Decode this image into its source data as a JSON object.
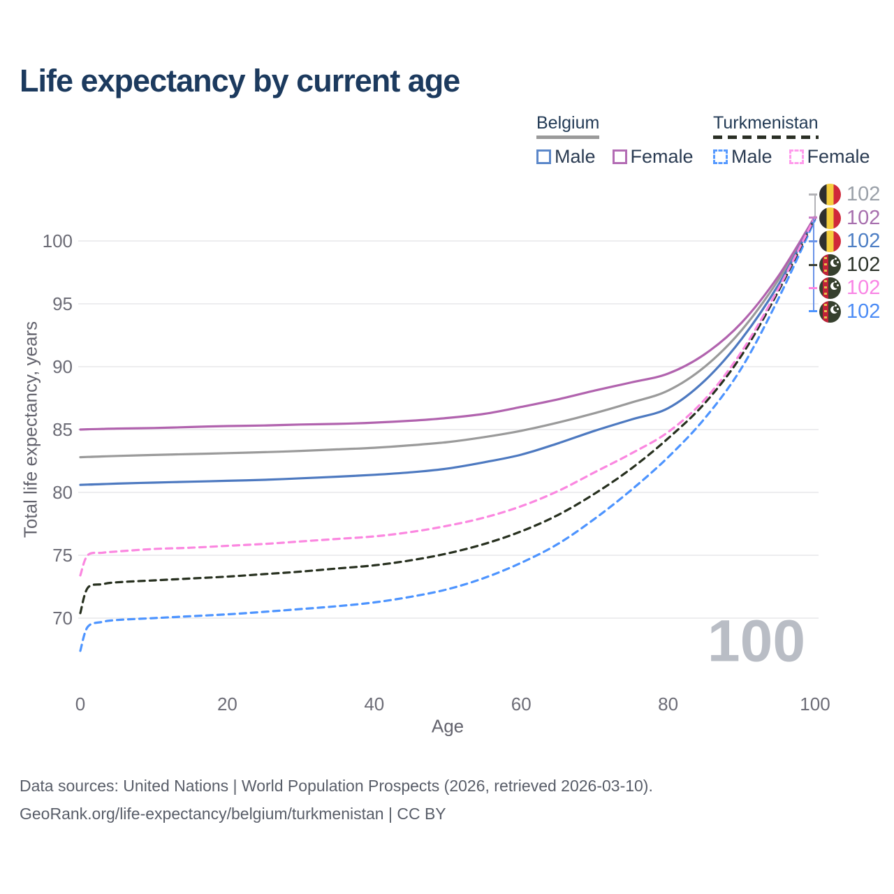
{
  "title": "Life expectancy by current age",
  "legend": {
    "belgium": {
      "label": "Belgium",
      "male_label": "Male",
      "female_label": "Female"
    },
    "turkmenistan": {
      "label": "Turkmenistan",
      "male_label": "Male",
      "female_label": "Female"
    }
  },
  "watermark": "100",
  "y_axis": {
    "title": "Total life expectancy, years"
  },
  "x_axis": {
    "title": "Age"
  },
  "end_labels": [
    {
      "country": "Belgium",
      "series": "Total",
      "value": "102",
      "color": "#9aa0a8"
    },
    {
      "country": "Belgium",
      "series": "Female",
      "value": "102",
      "color": "#a76fae"
    },
    {
      "country": "Belgium",
      "series": "Male",
      "value": "102",
      "color": "#4d7ec4"
    },
    {
      "country": "Turkmenistan",
      "series": "Total",
      "value": "102",
      "color": "#2b3229"
    },
    {
      "country": "Turkmenistan",
      "series": "Female",
      "value": "102",
      "color": "#f985e5"
    },
    {
      "country": "Turkmenistan",
      "series": "Male",
      "value": "102",
      "color": "#4b8bf5"
    }
  ],
  "footer": {
    "line1": "Data sources: United Nations | World Population Prospects (2026, retrieved 2026-03-10).",
    "line2": "GeoRank.org/life-expectancy/belgium/turkmenistan | CC BY"
  },
  "chart_data": {
    "type": "line",
    "title": "Life expectancy by current age",
    "xlabel": "Age",
    "ylabel": "Total life expectancy, years",
    "xticks": [
      0,
      20,
      40,
      60,
      80,
      100
    ],
    "yticks": [
      70,
      75,
      80,
      85,
      90,
      95,
      100
    ],
    "xlim": [
      0,
      100
    ],
    "ylim": [
      66,
      103
    ],
    "grid": true,
    "legend_position": "top-right",
    "series": [
      {
        "name": "Belgium Total",
        "color": "#9a9a9a",
        "dashed": false,
        "points": [
          [
            0,
            82.8
          ],
          [
            1,
            82.82
          ],
          [
            3,
            82.86
          ],
          [
            5,
            82.9
          ],
          [
            10,
            82.98
          ],
          [
            15,
            83.05
          ],
          [
            20,
            83.12
          ],
          [
            25,
            83.2
          ],
          [
            30,
            83.3
          ],
          [
            35,
            83.42
          ],
          [
            40,
            83.55
          ],
          [
            45,
            83.75
          ],
          [
            50,
            84.0
          ],
          [
            55,
            84.4
          ],
          [
            60,
            84.9
          ],
          [
            65,
            85.55
          ],
          [
            70,
            86.3
          ],
          [
            75,
            87.15
          ],
          [
            80,
            88.1
          ],
          [
            85,
            90.0
          ],
          [
            90,
            92.9
          ],
          [
            95,
            96.9
          ],
          [
            100,
            101.9
          ]
        ]
      },
      {
        "name": "Belgium Female",
        "color": "#b163ae",
        "dashed": false,
        "points": [
          [
            0,
            85.0
          ],
          [
            1,
            85.02
          ],
          [
            3,
            85.05
          ],
          [
            5,
            85.08
          ],
          [
            10,
            85.12
          ],
          [
            15,
            85.2
          ],
          [
            20,
            85.28
          ],
          [
            25,
            85.32
          ],
          [
            30,
            85.4
          ],
          [
            35,
            85.45
          ],
          [
            40,
            85.55
          ],
          [
            45,
            85.7
          ],
          [
            50,
            85.92
          ],
          [
            55,
            86.25
          ],
          [
            60,
            86.8
          ],
          [
            65,
            87.4
          ],
          [
            70,
            88.1
          ],
          [
            75,
            88.75
          ],
          [
            80,
            89.45
          ],
          [
            85,
            91.0
          ],
          [
            90,
            93.5
          ],
          [
            95,
            97.2
          ],
          [
            100,
            101.95
          ]
        ]
      },
      {
        "name": "Belgium Male",
        "color": "#4d79c0",
        "dashed": false,
        "points": [
          [
            0,
            80.6
          ],
          [
            1,
            80.62
          ],
          [
            3,
            80.66
          ],
          [
            5,
            80.7
          ],
          [
            10,
            80.78
          ],
          [
            15,
            80.85
          ],
          [
            20,
            80.92
          ],
          [
            25,
            81.0
          ],
          [
            30,
            81.12
          ],
          [
            35,
            81.25
          ],
          [
            40,
            81.4
          ],
          [
            45,
            81.6
          ],
          [
            50,
            81.9
          ],
          [
            55,
            82.4
          ],
          [
            60,
            83.0
          ],
          [
            65,
            83.9
          ],
          [
            70,
            84.9
          ],
          [
            75,
            85.8
          ],
          [
            80,
            86.7
          ],
          [
            85,
            88.9
          ],
          [
            90,
            92.2
          ],
          [
            95,
            96.5
          ],
          [
            100,
            101.85
          ]
        ]
      },
      {
        "name": "Turkmenistan Male",
        "color": "#4d94ff",
        "dashed": true,
        "points": [
          [
            0,
            67.4
          ],
          [
            1,
            69.3
          ],
          [
            3,
            69.7
          ],
          [
            5,
            69.85
          ],
          [
            10,
            70.0
          ],
          [
            15,
            70.15
          ],
          [
            20,
            70.3
          ],
          [
            25,
            70.5
          ],
          [
            30,
            70.72
          ],
          [
            35,
            70.95
          ],
          [
            40,
            71.25
          ],
          [
            45,
            71.7
          ],
          [
            50,
            72.3
          ],
          [
            55,
            73.2
          ],
          [
            60,
            74.4
          ],
          [
            65,
            75.9
          ],
          [
            70,
            77.9
          ],
          [
            75,
            80.2
          ],
          [
            80,
            82.8
          ],
          [
            85,
            85.9
          ],
          [
            90,
            89.9
          ],
          [
            95,
            95.4
          ],
          [
            100,
            101.7
          ]
        ]
      },
      {
        "name": "Turkmenistan Total",
        "color": "#27301f",
        "dashed": true,
        "points": [
          [
            0,
            70.4
          ],
          [
            1,
            72.4
          ],
          [
            3,
            72.7
          ],
          [
            5,
            72.85
          ],
          [
            10,
            73.0
          ],
          [
            15,
            73.15
          ],
          [
            20,
            73.3
          ],
          [
            25,
            73.5
          ],
          [
            30,
            73.7
          ],
          [
            35,
            73.95
          ],
          [
            40,
            74.2
          ],
          [
            45,
            74.6
          ],
          [
            50,
            75.15
          ],
          [
            55,
            75.9
          ],
          [
            60,
            76.9
          ],
          [
            65,
            78.2
          ],
          [
            70,
            79.9
          ],
          [
            75,
            81.9
          ],
          [
            80,
            84.3
          ],
          [
            85,
            87.1
          ],
          [
            90,
            90.9
          ],
          [
            95,
            96.0
          ],
          [
            100,
            101.85
          ]
        ]
      },
      {
        "name": "Turkmenistan Female",
        "color": "#fb87e0",
        "dashed": true,
        "points": [
          [
            0,
            73.4
          ],
          [
            1,
            75.0
          ],
          [
            3,
            75.2
          ],
          [
            5,
            75.3
          ],
          [
            10,
            75.5
          ],
          [
            15,
            75.6
          ],
          [
            20,
            75.75
          ],
          [
            25,
            75.9
          ],
          [
            30,
            76.1
          ],
          [
            35,
            76.3
          ],
          [
            40,
            76.5
          ],
          [
            45,
            76.85
          ],
          [
            50,
            77.35
          ],
          [
            55,
            78.0
          ],
          [
            60,
            78.9
          ],
          [
            65,
            80.1
          ],
          [
            70,
            81.6
          ],
          [
            75,
            83.1
          ],
          [
            80,
            84.8
          ],
          [
            85,
            87.4
          ],
          [
            90,
            91.2
          ],
          [
            95,
            96.2
          ],
          [
            100,
            101.9
          ]
        ]
      }
    ]
  }
}
